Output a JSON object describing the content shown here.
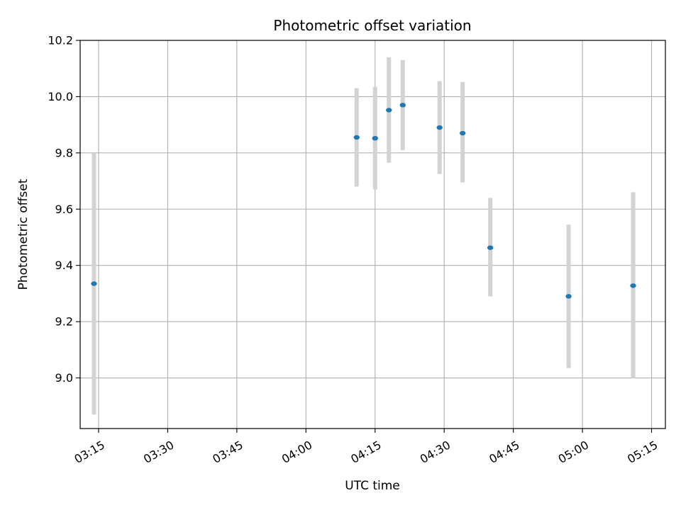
{
  "chart_data": {
    "type": "scatter",
    "title": "Photometric offset variation",
    "xlabel": "UTC time",
    "ylabel": "Photometric offset",
    "xlim": [
      "03:11",
      "05:18"
    ],
    "ylim": [
      8.82,
      10.2
    ],
    "x_ticks": [
      "03:15",
      "03:30",
      "03:45",
      "04:00",
      "04:15",
      "04:30",
      "04:45",
      "05:00",
      "05:15"
    ],
    "y_ticks": [
      "9.0",
      "9.2",
      "9.4",
      "9.6",
      "9.8",
      "10.0",
      "10.2"
    ],
    "grid": true,
    "legend": "none",
    "colors": {
      "points": "#1f77b4",
      "error_bars": "#d3d3d3",
      "grid": "#b0b0b0"
    },
    "points": [
      {
        "x": "03:14",
        "y": 9.335,
        "ylow": 8.87,
        "yhigh": 9.8
      },
      {
        "x": "04:11",
        "y": 9.855,
        "ylow": 9.68,
        "yhigh": 10.03
      },
      {
        "x": "04:15",
        "y": 9.852,
        "ylow": 9.67,
        "yhigh": 10.035
      },
      {
        "x": "04:18",
        "y": 9.952,
        "ylow": 9.765,
        "yhigh": 10.14
      },
      {
        "x": "04:21",
        "y": 9.97,
        "ylow": 9.81,
        "yhigh": 10.13
      },
      {
        "x": "04:29",
        "y": 9.89,
        "ylow": 9.725,
        "yhigh": 10.055
      },
      {
        "x": "04:34",
        "y": 9.87,
        "ylow": 9.695,
        "yhigh": 10.052
      },
      {
        "x": "04:40",
        "y": 9.463,
        "ylow": 9.29,
        "yhigh": 9.64
      },
      {
        "x": "04:57",
        "y": 9.29,
        "ylow": 9.035,
        "yhigh": 9.545
      },
      {
        "x": "05:11",
        "y": 9.328,
        "ylow": 9.0,
        "yhigh": 9.66
      }
    ]
  }
}
